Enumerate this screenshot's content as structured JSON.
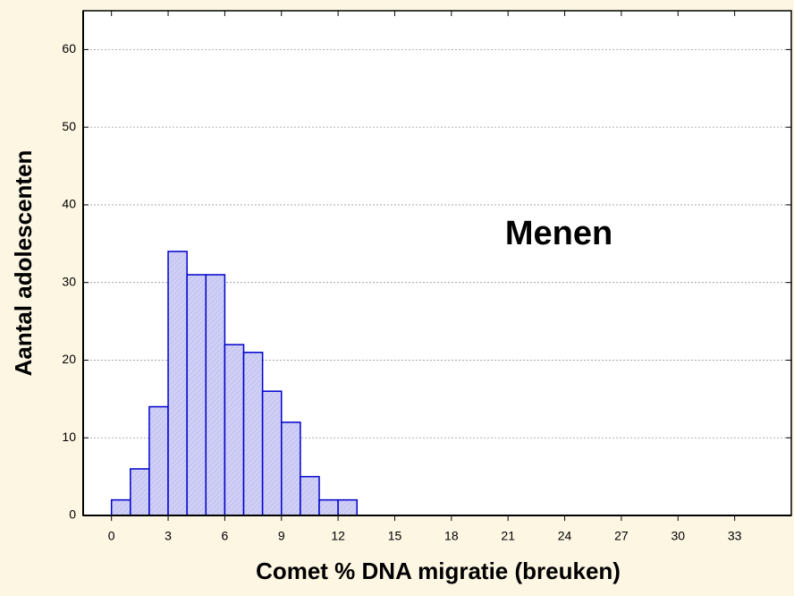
{
  "chart_data": {
    "type": "histogram",
    "xlabel": "Comet % DNA migratie (breuken)",
    "ylabel": "Aantal adolescenten",
    "annotation": "Menen",
    "bins": [
      0,
      1,
      2,
      3,
      4,
      5,
      6,
      7,
      8,
      9,
      10,
      11,
      12,
      13
    ],
    "values": [
      2,
      6,
      14,
      34,
      31,
      31,
      22,
      21,
      16,
      12,
      5,
      2,
      2
    ],
    "color": "#c8c8f4",
    "edgecolor": "#0000cc",
    "xlim": [
      -1.5,
      36
    ],
    "xticks": [
      0,
      3,
      6,
      9,
      12,
      15,
      18,
      21,
      24,
      27,
      30,
      33
    ],
    "ylim": [
      0,
      65
    ],
    "yticks": [
      0,
      10,
      20,
      30,
      40,
      50,
      60
    ],
    "grid": true
  }
}
